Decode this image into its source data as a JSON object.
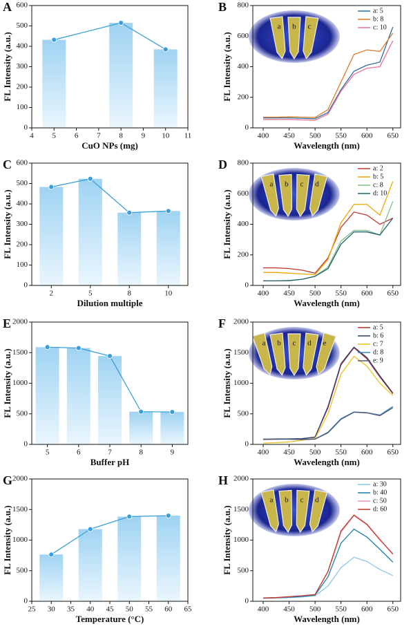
{
  "chart_data": [
    {
      "type": "bar",
      "panel_label": "A",
      "xlabel": "CuO NPs (mg)",
      "ylabel": "FL Intensity (a.u.)",
      "x": [
        5,
        8,
        10
      ],
      "values": [
        432,
        515,
        385
      ],
      "xlim": [
        4,
        11
      ],
      "xticks": [
        4,
        5,
        6,
        7,
        8,
        9,
        10,
        11
      ],
      "ylim": [
        0,
        600
      ],
      "yticks": [
        0,
        100,
        200,
        300,
        400,
        500,
        600
      ],
      "color": "#3a9fd8"
    },
    {
      "type": "line",
      "panel_label": "B",
      "xlabel": "Wavelength (nm)",
      "ylabel": "FL Intensity (a.u.)",
      "x": [
        400,
        425,
        450,
        475,
        500,
        525,
        550,
        575,
        600,
        625,
        650
      ],
      "xlim": [
        380,
        665
      ],
      "xticks": [
        400,
        450,
        500,
        550,
        600,
        650
      ],
      "ylim": [
        0,
        800
      ],
      "yticks": [
        0,
        200,
        400,
        600,
        800
      ],
      "legend": "top-right",
      "inset_labels": [
        "a",
        "b",
        "c"
      ],
      "series": [
        {
          "name": "a: 5",
          "color": "#2d6e9e",
          "values": [
            65,
            65,
            65,
            62,
            60,
            100,
            250,
            370,
            410,
            430,
            660
          ]
        },
        {
          "name": "b: 8",
          "color": "#e07b2a",
          "values": [
            70,
            70,
            72,
            70,
            68,
            120,
            300,
            480,
            510,
            500,
            620
          ]
        },
        {
          "name": "c: 10",
          "color": "#e8709a",
          "values": [
            55,
            55,
            55,
            52,
            50,
            90,
            240,
            350,
            390,
            400,
            570
          ]
        }
      ]
    },
    {
      "type": "bar",
      "panel_label": "C",
      "xlabel": "Dilution multiple",
      "ylabel": "FL Intensity (a.u.)",
      "categories": [
        "2",
        "5",
        "8",
        "10"
      ],
      "values": [
        483,
        523,
        357,
        365
      ],
      "ylim": [
        0,
        600
      ],
      "yticks": [
        0,
        100,
        200,
        300,
        400,
        500,
        600
      ],
      "color": "#3a9fd8"
    },
    {
      "type": "line",
      "panel_label": "D",
      "xlabel": "Wavelength (nm)",
      "ylabel": "FL Intensity (a.u.)",
      "x": [
        400,
        425,
        450,
        475,
        500,
        525,
        550,
        575,
        600,
        625,
        650
      ],
      "xlim": [
        380,
        665
      ],
      "xticks": [
        400,
        450,
        500,
        550,
        600,
        650
      ],
      "ylim": [
        0,
        800
      ],
      "yticks": [
        0,
        200,
        400,
        600,
        800
      ],
      "legend": "top-right",
      "inset_labels": [
        "a",
        "b",
        "c",
        "d"
      ],
      "series": [
        {
          "name": "a: 2",
          "color": "#c0392b",
          "values": [
            115,
            115,
            110,
            100,
            80,
            180,
            380,
            480,
            460,
            400,
            440
          ]
        },
        {
          "name": "b: 5",
          "color": "#f0a500",
          "values": [
            85,
            85,
            80,
            75,
            70,
            170,
            410,
            530,
            530,
            460,
            680
          ]
        },
        {
          "name": "c: 8",
          "color": "#7dbf8a",
          "values": [
            30,
            30,
            30,
            40,
            60,
            120,
            290,
            360,
            360,
            330,
            550
          ]
        },
        {
          "name": "d: 10",
          "color": "#1f5f6b",
          "values": [
            30,
            30,
            32,
            40,
            60,
            110,
            270,
            350,
            350,
            330,
            440
          ]
        }
      ]
    },
    {
      "type": "bar",
      "panel_label": "E",
      "xlabel": "Buffer pH",
      "ylabel": "FL Intensity (a.u.)",
      "categories": [
        "5",
        "6",
        "7",
        "8",
        "9"
      ],
      "values": [
        1590,
        1575,
        1445,
        535,
        530
      ],
      "ylim": [
        0,
        2000
      ],
      "yticks": [
        0,
        500,
        1000,
        1500,
        2000
      ],
      "color": "#3a9fd8"
    },
    {
      "type": "line",
      "panel_label": "F",
      "xlabel": "Wavelength (nm)",
      "ylabel": "FL Intensity (a.u.)",
      "x": [
        400,
        425,
        450,
        475,
        500,
        525,
        550,
        575,
        600,
        625,
        650
      ],
      "xlim": [
        380,
        665
      ],
      "xticks": [
        400,
        450,
        500,
        550,
        600,
        650
      ],
      "ylim": [
        0,
        2000
      ],
      "yticks": [
        0,
        500,
        1000,
        1500,
        2000
      ],
      "legend": "top-right",
      "inset_labels": [
        "a",
        "b",
        "c",
        "d",
        "e"
      ],
      "series": [
        {
          "name": "a: 5",
          "color": "#b03030",
          "values": [
            80,
            85,
            90,
            90,
            120,
            600,
            1300,
            1580,
            1400,
            1100,
            830
          ]
        },
        {
          "name": "b: 6",
          "color": "#2c3e70",
          "values": [
            85,
            90,
            90,
            95,
            120,
            620,
            1320,
            1590,
            1420,
            1120,
            840
          ]
        },
        {
          "name": "c: 7",
          "color": "#e8c020",
          "values": [
            20,
            30,
            40,
            70,
            100,
            500,
            1150,
            1440,
            1280,
            1000,
            800
          ]
        },
        {
          "name": "d: 8",
          "color": "#2e8bc0",
          "values": [
            85,
            85,
            85,
            80,
            90,
            200,
            420,
            530,
            520,
            480,
            620
          ]
        },
        {
          "name": "e: 9",
          "color": "#555577",
          "values": [
            85,
            85,
            85,
            80,
            85,
            190,
            410,
            525,
            515,
            470,
            600
          ]
        }
      ]
    },
    {
      "type": "bar",
      "panel_label": "G",
      "xlabel": "Temperature (°C)",
      "ylabel": "FL Intensity (a.u.)",
      "x": [
        30,
        40,
        50,
        60
      ],
      "values": [
        765,
        1180,
        1385,
        1400
      ],
      "xlim": [
        25,
        65
      ],
      "xticks": [
        25,
        30,
        35,
        40,
        45,
        50,
        55,
        60,
        65
      ],
      "ylim": [
        0,
        2000
      ],
      "yticks": [
        0,
        500,
        1000,
        1500,
        2000
      ],
      "color": "#3a9fd8"
    },
    {
      "type": "line",
      "panel_label": "H",
      "xlabel": "Wavelength (nm)",
      "ylabel": "FL Intensity (a.u.)",
      "x": [
        400,
        425,
        450,
        475,
        500,
        525,
        550,
        575,
        600,
        625,
        650
      ],
      "xlim": [
        380,
        665
      ],
      "xticks": [
        400,
        450,
        500,
        550,
        600,
        650
      ],
      "ylim": [
        0,
        2000
      ],
      "yticks": [
        0,
        500,
        1000,
        1500,
        2000
      ],
      "legend": "top-right",
      "inset_labels": [
        "a",
        "b",
        "c",
        "d"
      ],
      "series": [
        {
          "name": "a: 30",
          "color": "#8cc8e8",
          "values": [
            50,
            55,
            60,
            70,
            90,
            250,
            550,
            720,
            650,
            520,
            420
          ]
        },
        {
          "name": "b: 40",
          "color": "#1a7fb0",
          "values": [
            50,
            55,
            65,
            80,
            100,
            400,
            950,
            1180,
            1050,
            850,
            640
          ]
        },
        {
          "name": "c: 50",
          "color": "#e89aa8",
          "values": [
            55,
            60,
            75,
            90,
            110,
            480,
            1130,
            1400,
            1250,
            1000,
            780
          ]
        },
        {
          "name": "d: 60",
          "color": "#c0392b",
          "values": [
            55,
            60,
            75,
            90,
            110,
            490,
            1150,
            1410,
            1260,
            1010,
            770
          ]
        }
      ]
    }
  ]
}
